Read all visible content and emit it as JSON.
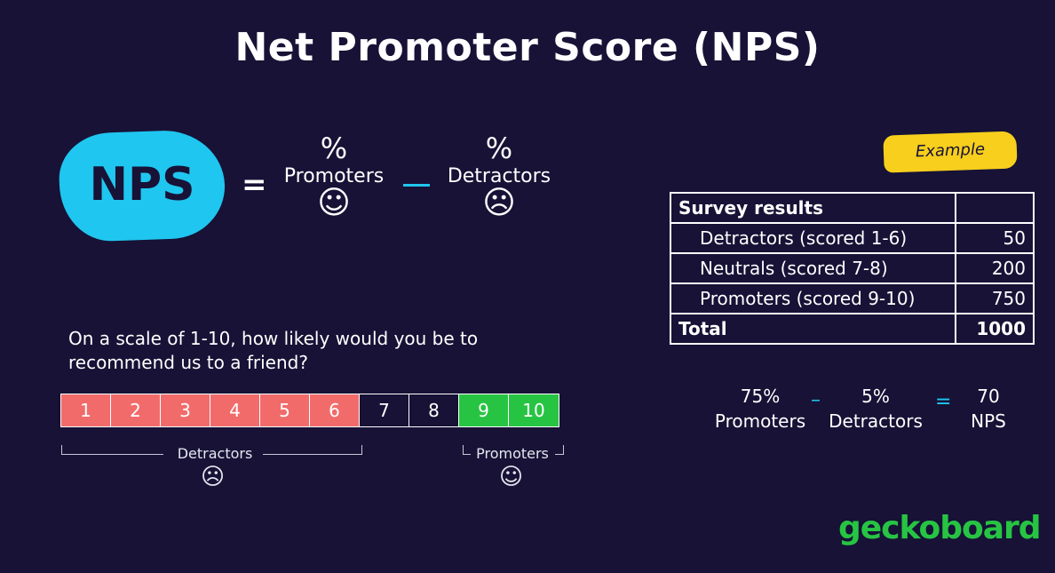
{
  "title": "Net Promoter Score (NPS)",
  "formula": {
    "lhs": "NPS",
    "equals": "=",
    "promoters": {
      "percent": "%",
      "label": "Promoters",
      "face": "☺"
    },
    "detractors": {
      "percent": "%",
      "label": "Detractors",
      "face": "☹"
    }
  },
  "example": {
    "tag": "Example",
    "table": {
      "header": "Survey results",
      "rows": [
        {
          "label": "Detractors (scored 1-6)",
          "value": "50"
        },
        {
          "label": "Neutrals (scored 7-8)",
          "value": "200"
        },
        {
          "label": "Promoters (scored 9-10)",
          "value": "750"
        }
      ],
      "total_label": "Total",
      "total_value": "1000"
    },
    "calc": {
      "promoters_pct": "75%",
      "promoters_label": "Promoters",
      "minus": "–",
      "detractors_pct": "5%",
      "detractors_label": "Detractors",
      "equals": "=",
      "result": "70",
      "result_label": "NPS"
    }
  },
  "question": {
    "line1": "On a scale of 1-10, how likely would you be to",
    "line2": "recommend us to a friend?"
  },
  "scale": {
    "values": [
      "1",
      "2",
      "3",
      "4",
      "5",
      "6",
      "7",
      "8",
      "9",
      "10"
    ],
    "colors": {
      "detractor": "#f26b6b",
      "neutral": "#171236",
      "promoter": "#27c443"
    },
    "detractors_label": "Detractors",
    "promoters_label": "Promoters",
    "detractors_face": "☹",
    "promoters_face": "☺"
  },
  "brand": "geckoboard"
}
